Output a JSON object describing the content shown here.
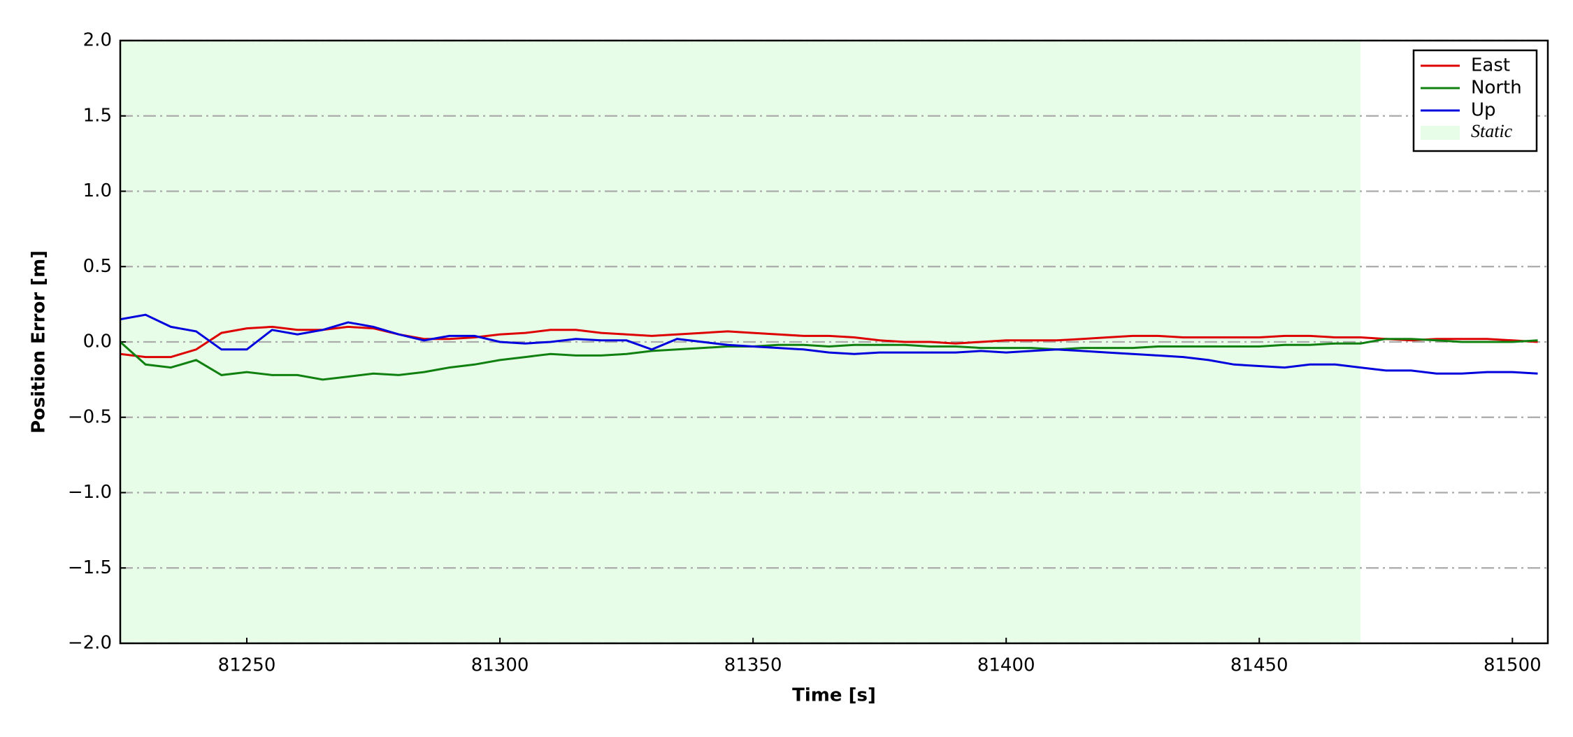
{
  "chart_data": {
    "type": "line",
    "xlabel": "Time [s]",
    "ylabel": "Position Error [m]",
    "x": [
      81225,
      81230,
      81235,
      81240,
      81245,
      81250,
      81255,
      81260,
      81265,
      81270,
      81275,
      81280,
      81285,
      81290,
      81295,
      81300,
      81305,
      81310,
      81315,
      81320,
      81325,
      81330,
      81335,
      81340,
      81345,
      81350,
      81355,
      81360,
      81365,
      81370,
      81375,
      81380,
      81385,
      81390,
      81395,
      81400,
      81405,
      81410,
      81415,
      81420,
      81425,
      81430,
      81435,
      81440,
      81445,
      81450,
      81455,
      81460,
      81465,
      81470,
      81475,
      81480,
      81485,
      81490,
      81495,
      81500,
      81505
    ],
    "series": [
      {
        "name": "East",
        "color": "#dd0000",
        "values": [
          -0.08,
          -0.1,
          -0.1,
          -0.05,
          0.06,
          0.09,
          0.1,
          0.08,
          0.08,
          0.1,
          0.09,
          0.05,
          0.02,
          0.02,
          0.03,
          0.05,
          0.06,
          0.08,
          0.08,
          0.06,
          0.05,
          0.04,
          0.05,
          0.06,
          0.07,
          0.06,
          0.05,
          0.04,
          0.04,
          0.03,
          0.01,
          0.0,
          0.0,
          -0.01,
          0.0,
          0.01,
          0.01,
          0.01,
          0.02,
          0.03,
          0.04,
          0.04,
          0.03,
          0.03,
          0.03,
          0.03,
          0.04,
          0.04,
          0.03,
          0.03,
          0.02,
          0.01,
          0.02,
          0.02,
          0.02,
          0.01,
          0.0
        ]
      },
      {
        "name": "North",
        "color": "#108010",
        "values": [
          0.0,
          -0.15,
          -0.17,
          -0.12,
          -0.22,
          -0.2,
          -0.22,
          -0.22,
          -0.25,
          -0.23,
          -0.21,
          -0.22,
          -0.2,
          -0.17,
          -0.15,
          -0.12,
          -0.1,
          -0.08,
          -0.09,
          -0.09,
          -0.08,
          -0.06,
          -0.05,
          -0.04,
          -0.03,
          -0.03,
          -0.02,
          -0.02,
          -0.03,
          -0.02,
          -0.02,
          -0.02,
          -0.03,
          -0.03,
          -0.04,
          -0.04,
          -0.04,
          -0.05,
          -0.04,
          -0.04,
          -0.04,
          -0.03,
          -0.03,
          -0.03,
          -0.03,
          -0.03,
          -0.02,
          -0.02,
          -0.01,
          -0.01,
          0.02,
          0.02,
          0.01,
          0.0,
          0.0,
          0.0,
          0.01
        ]
      },
      {
        "name": "Up",
        "color": "#0000dd",
        "values": [
          0.15,
          0.18,
          0.1,
          0.07,
          -0.05,
          -0.05,
          0.08,
          0.05,
          0.08,
          0.13,
          0.1,
          0.05,
          0.01,
          0.04,
          0.04,
          0.0,
          -0.01,
          0.0,
          0.02,
          0.01,
          0.01,
          -0.05,
          0.02,
          0.0,
          -0.02,
          -0.03,
          -0.04,
          -0.05,
          -0.07,
          -0.08,
          -0.07,
          -0.07,
          -0.07,
          -0.07,
          -0.06,
          -0.07,
          -0.06,
          -0.05,
          -0.06,
          -0.07,
          -0.08,
          -0.09,
          -0.1,
          -0.12,
          -0.15,
          -0.16,
          -0.17,
          -0.15,
          -0.15,
          -0.17,
          -0.19,
          -0.19,
          -0.21,
          -0.21,
          -0.2,
          -0.2,
          -0.21
        ]
      }
    ],
    "shaded": {
      "label": "Static",
      "x": [
        81225,
        81470
      ],
      "color": "#e8fde8"
    },
    "xlim": [
      81225,
      81507
    ],
    "xticks": [
      81250,
      81300,
      81350,
      81400,
      81450,
      81500
    ],
    "ylim": [
      -2.0,
      2.0
    ],
    "yticks": [
      {
        "value": -2.0,
        "label": "−2.0"
      },
      {
        "value": -1.5,
        "label": "−1.5"
      },
      {
        "value": -1.0,
        "label": "−1.0"
      },
      {
        "value": -0.5,
        "label": "−0.5"
      },
      {
        "value": 0.0,
        "label": "0.0"
      },
      {
        "value": 0.5,
        "label": "0.5"
      },
      {
        "value": 1.0,
        "label": "1.0"
      },
      {
        "value": 1.5,
        "label": "1.5"
      },
      {
        "value": 2.0,
        "label": "2.0"
      }
    ],
    "grid": true,
    "legend": "upper right"
  }
}
